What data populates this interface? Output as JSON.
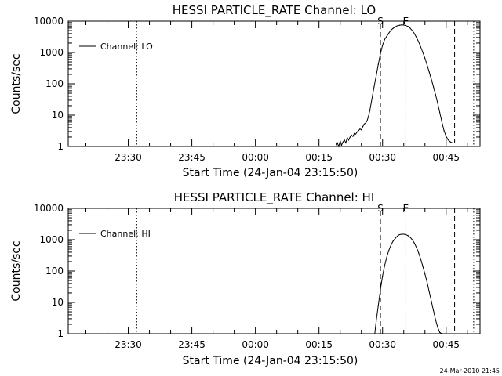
{
  "footer_timestamp": "24-Mar-2010 21:45",
  "chart_data": [
    {
      "type": "line",
      "title": "HESSI PARTICLE_RATE Channel: LO",
      "xlabel": "Start Time (24-Jan-04 23:15:50)",
      "ylabel": "Counts/sec",
      "yscale": "log",
      "ylim": [
        1,
        10000
      ],
      "xlim": [
        "23:15:50",
        "00:53:00"
      ],
      "x_ticks": [
        "23:30",
        "23:45",
        "00:00",
        "00:15",
        "00:30",
        "00:45"
      ],
      "y_ticks": [
        "1",
        "10",
        "100",
        "1000",
        "10000"
      ],
      "legend": {
        "label": "Channel: LO",
        "placement": "top-left"
      },
      "markers": [
        {
          "label": "S",
          "x": "00:29:30",
          "style": "dashed"
        },
        {
          "label": "E",
          "x": "00:35:30",
          "style": "dotted"
        }
      ],
      "vlines": [
        {
          "x": "23:32:00",
          "style": "dotted"
        },
        {
          "x": "00:47:00",
          "style": "dashed"
        },
        {
          "x": "00:51:30",
          "style": "dotted"
        }
      ],
      "series": [
        {
          "name": "Channel: LO",
          "x": [
            "00:19:00",
            "00:19:20",
            "00:19:40",
            "00:20:00",
            "00:20:20",
            "00:20:40",
            "00:21:00",
            "00:21:20",
            "00:21:40",
            "00:22:00",
            "00:22:20",
            "00:22:40",
            "00:23:00",
            "00:23:20",
            "00:23:40",
            "00:24:00",
            "00:24:20",
            "00:24:40",
            "00:25:00",
            "00:25:20",
            "00:25:40",
            "00:26:00",
            "00:26:20",
            "00:26:40",
            "00:27:00",
            "00:27:20",
            "00:27:40",
            "00:28:00",
            "00:28:30",
            "00:29:00",
            "00:29:30",
            "00:30:00",
            "00:30:30",
            "00:31:00",
            "00:31:30",
            "00:32:00",
            "00:32:30",
            "00:33:00",
            "00:33:30",
            "00:34:00",
            "00:34:30",
            "00:35:00",
            "00:35:30",
            "00:36:00",
            "00:36:30",
            "00:37:00",
            "00:37:30",
            "00:38:00",
            "00:38:30",
            "00:39:00",
            "00:39:30",
            "00:40:00",
            "00:40:30",
            "00:41:00",
            "00:41:30",
            "00:42:00",
            "00:42:30",
            "00:43:00",
            "00:43:30",
            "00:44:00",
            "00:44:30",
            "00:45:00",
            "00:45:30",
            "00:46:00",
            "00:46:30"
          ],
          "y": [
            1,
            1.3,
            1,
            1.5,
            1.1,
            1.4,
            1.6,
            1.3,
            1.9,
            1.6,
            2.0,
            2.3,
            2.1,
            2.6,
            2.5,
            2.9,
            3.2,
            3.6,
            3.4,
            4.3,
            5.2,
            5.6,
            6.5,
            9,
            14,
            25,
            45,
            80,
            180,
            420,
            900,
            1700,
            2600,
            3300,
            4200,
            5200,
            5900,
            6600,
            7100,
            7400,
            7600,
            7500,
            7200,
            6800,
            6000,
            5000,
            4000,
            3000,
            2200,
            1500,
            1000,
            650,
            400,
            240,
            140,
            80,
            45,
            24,
            12,
            6,
            3.2,
            2.1,
            1.6,
            1.4,
            1.3
          ]
        }
      ]
    },
    {
      "type": "line",
      "title": "HESSI PARTICLE_RATE Channel: HI",
      "xlabel": "Start Time (24-Jan-04 23:15:50)",
      "ylabel": "Counts/sec",
      "yscale": "log",
      "ylim": [
        1,
        10000
      ],
      "xlim": [
        "23:15:50",
        "00:53:00"
      ],
      "x_ticks": [
        "23:30",
        "23:45",
        "00:00",
        "00:15",
        "00:30",
        "00:45"
      ],
      "y_ticks": [
        "1",
        "10",
        "100",
        "1000",
        "10000"
      ],
      "legend": {
        "label": "Channel: HI",
        "placement": "top-left"
      },
      "markers": [
        {
          "label": "S",
          "x": "00:29:30",
          "style": "dashed"
        },
        {
          "label": "E",
          "x": "00:35:30",
          "style": "dotted"
        }
      ],
      "vlines": [
        {
          "x": "23:32:00",
          "style": "dotted"
        },
        {
          "x": "00:47:00",
          "style": "dashed"
        },
        {
          "x": "00:51:30",
          "style": "dotted"
        }
      ],
      "series": [
        {
          "name": "Channel: HI",
          "x": [
            "00:28:10",
            "00:28:30",
            "00:29:00",
            "00:29:30",
            "00:30:00",
            "00:30:30",
            "00:31:00",
            "00:31:30",
            "00:32:00",
            "00:32:30",
            "00:33:00",
            "00:33:30",
            "00:34:00",
            "00:34:30",
            "00:35:00",
            "00:35:30",
            "00:36:00",
            "00:36:30",
            "00:37:00",
            "00:37:30",
            "00:38:00",
            "00:38:30",
            "00:39:00",
            "00:39:30",
            "00:40:00",
            "00:40:30",
            "00:41:00",
            "00:41:30",
            "00:42:00",
            "00:42:30",
            "00:43:00",
            "00:43:30",
            "00:44:00",
            "00:44:30"
          ],
          "y": [
            1,
            2.5,
            8,
            25,
            70,
            150,
            280,
            460,
            680,
            900,
            1100,
            1300,
            1450,
            1500,
            1500,
            1450,
            1350,
            1200,
            1000,
            780,
            560,
            380,
            240,
            140,
            80,
            44,
            22,
            11,
            5.5,
            2.8,
            1.6,
            1.1,
            1,
            1
          ]
        }
      ]
    }
  ]
}
